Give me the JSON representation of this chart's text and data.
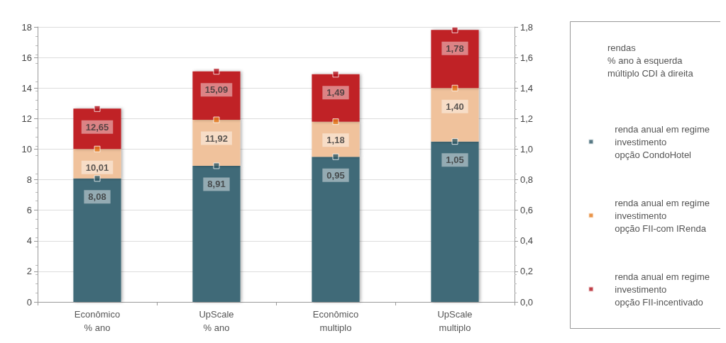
{
  "chart_data": {
    "type": "bar",
    "stacked": true,
    "legend_title": "rendas\n% ano à esquerda\nmúltiplo CDI à direita",
    "categories": [
      "Econômico\n% ano",
      "UpScale\n% ano",
      "Econômico\nmultiplo",
      "UpScale\nmultiplo"
    ],
    "series": [
      {
        "color": "#3f6b78",
        "values": [
          8.08,
          8.91,
          null,
          null
        ]
      },
      {
        "color": "#f0c29c",
        "values": [
          1.93,
          3.01,
          null,
          null
        ]
      },
      {
        "color": "#c02226",
        "values": [
          2.64,
          3.17,
          null,
          null
        ]
      },
      {
        "color": "#3f6b78",
        "axis": "y2",
        "values": [
          null,
          null,
          0.95,
          1.05
        ]
      },
      {
        "color": "#f0c29c",
        "axis": "y2",
        "values": [
          null,
          null,
          0.23,
          0.35
        ]
      },
      {
        "color": "#c02226",
        "axis": "y2",
        "values": [
          null,
          null,
          0.31,
          0.38
        ]
      },
      {
        "type": "scatter",
        "name": "renda anual em regime\ninvestimento\nopção CondoHotel",
        "color": "#2e5966",
        "values": [
          8.08,
          8.91,
          null,
          null
        ],
        "value_labels": [
          "8,08",
          "8,91",
          null,
          null
        ]
      },
      {
        "type": "scatter",
        "name": "renda anual em regime\ninvestimento\nopção FII-com IRenda",
        "color": "#e4791c",
        "values": [
          10.01,
          11.92,
          null,
          null
        ],
        "value_labels": [
          "10,01",
          "11,92",
          null,
          null
        ]
      },
      {
        "type": "scatter",
        "name": "renda anual em regime\ninvestimento\nopção FII-incentivado",
        "color": "#b0101a",
        "values": [
          12.65,
          15.09,
          null,
          null
        ],
        "value_labels": [
          "12,65",
          "15,09",
          null,
          null
        ]
      },
      {
        "type": "scatter",
        "color": "#2e5966",
        "axis": "y2",
        "values": [
          null,
          null,
          0.95,
          1.05
        ],
        "value_labels": [
          null,
          null,
          "0,95",
          "1,05"
        ]
      },
      {
        "type": "scatter",
        "color": "#e4791c",
        "axis": "y2",
        "values": [
          null,
          null,
          1.18,
          1.4
        ],
        "value_labels": [
          null,
          null,
          "1,18",
          "1,40"
        ]
      },
      {
        "type": "scatter",
        "color": "#b0101a",
        "axis": "y2",
        "values": [
          null,
          null,
          1.49,
          1.78
        ],
        "value_labels": [
          null,
          null,
          "1,49",
          "1,78"
        ]
      }
    ],
    "ylim": [
      0,
      18
    ],
    "yticks": [
      0,
      2,
      4,
      6,
      8,
      10,
      12,
      14,
      16,
      18
    ],
    "y2lim": [
      0,
      1.8
    ],
    "y2ticks": [
      {
        "value": 0,
        "label": "0,0"
      },
      {
        "value": 0.2,
        "label": "0,2"
      },
      {
        "value": 0.4,
        "label": "0,4"
      },
      {
        "value": 0.6,
        "label": "0,6"
      },
      {
        "value": 0.8,
        "label": "0,8"
      },
      {
        "value": 1.0,
        "label": "1,0"
      },
      {
        "value": 1.2,
        "label": "1,2"
      },
      {
        "value": 1.4,
        "label": "1,4"
      },
      {
        "value": 1.6,
        "label": "1,6"
      },
      {
        "value": 1.8,
        "label": "1,8"
      }
    ],
    "grid": "y",
    "legend": "right",
    "marker": "square"
  }
}
